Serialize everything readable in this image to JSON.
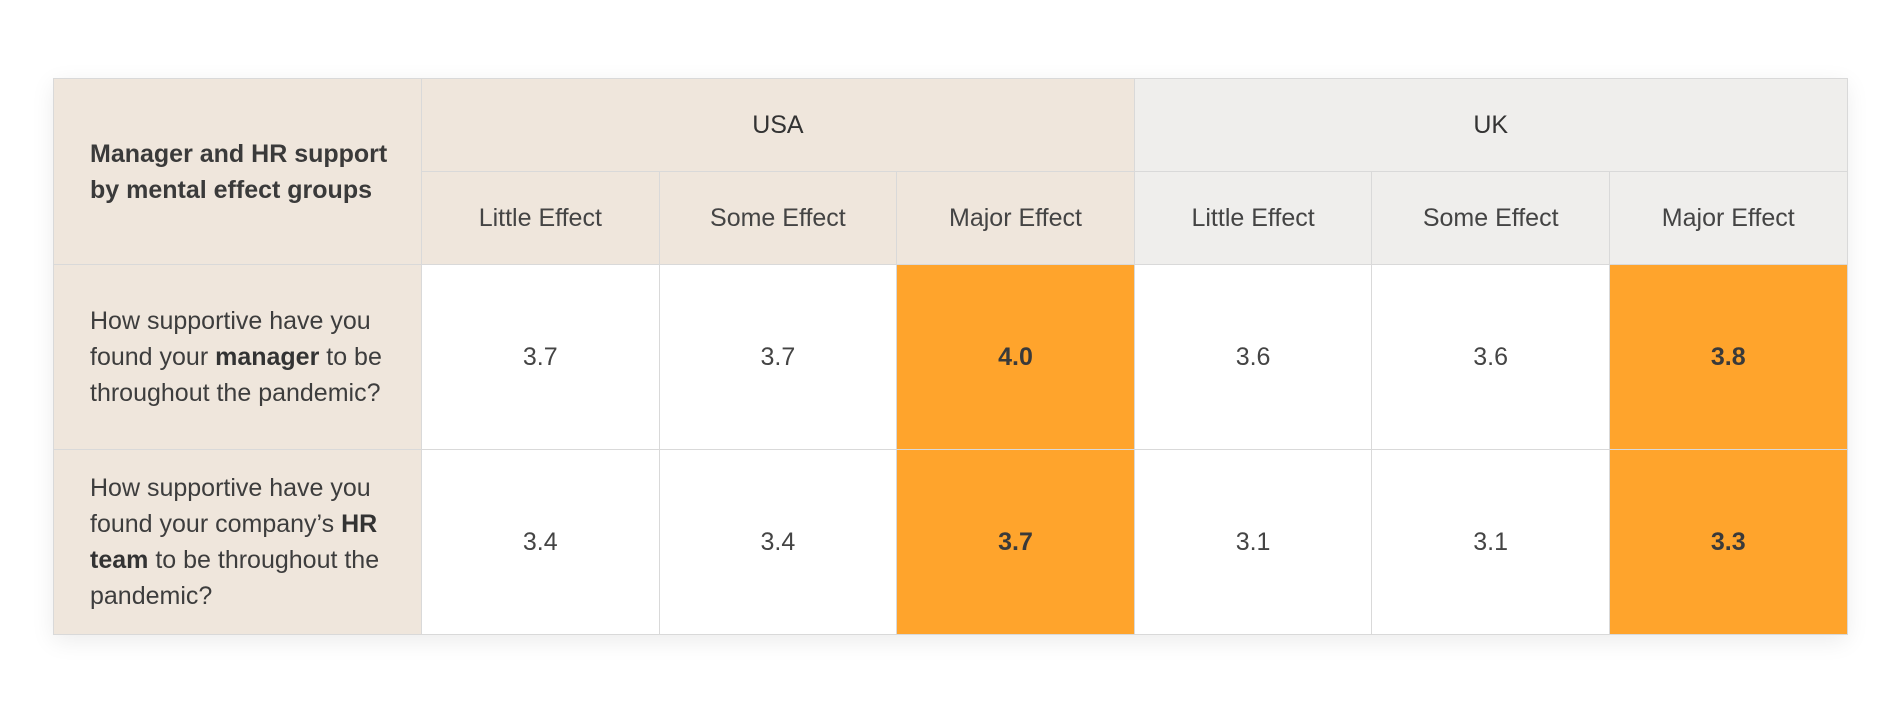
{
  "chart_data": {
    "type": "table",
    "title": "Manager and HR support by mental effect groups",
    "groups": [
      {
        "name": "USA",
        "columns": [
          "Little Effect",
          "Some Effect",
          "Major Effect"
        ]
      },
      {
        "name": "UK",
        "columns": [
          "Little Effect",
          "Some Effect",
          "Major Effect"
        ]
      }
    ],
    "rows": [
      {
        "label_parts": [
          {
            "text": "How supportive have you found your ",
            "bold": false
          },
          {
            "text": "manager",
            "bold": true
          },
          {
            "text": " to be throughout the pandemic?",
            "bold": false
          }
        ],
        "values": [
          "3.7",
          "3.7",
          "4.0",
          "3.6",
          "3.6",
          "3.8"
        ],
        "highlight": [
          false,
          false,
          true,
          false,
          false,
          true
        ]
      },
      {
        "label_parts": [
          {
            "text": "How supportive have you found your company’s ",
            "bold": false
          },
          {
            "text": "HR team",
            "bold": true
          },
          {
            "text": " to be throughout the pandemic?",
            "bold": false
          }
        ],
        "values": [
          "3.4",
          "3.4",
          "3.7",
          "3.1",
          "3.1",
          "3.3"
        ],
        "highlight": [
          false,
          false,
          true,
          false,
          false,
          true
        ]
      }
    ],
    "colors": {
      "highlight": "#ffa42c",
      "usa_header": "#efe6dc",
      "uk_header": "#efeeec",
      "label_column": "#efe6dc"
    }
  }
}
